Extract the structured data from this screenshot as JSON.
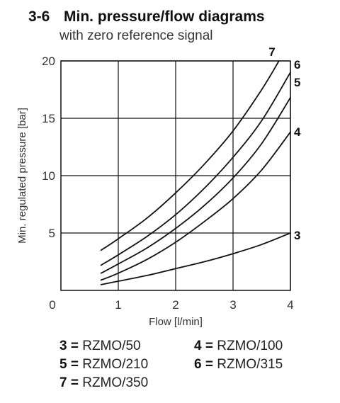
{
  "section": {
    "number": "3-6",
    "title": "Min. pressure/flow diagrams",
    "subtitle": "with zero reference signal"
  },
  "chart_data": {
    "type": "line",
    "xlabel": "Flow [l/min]",
    "ylabel": "Min. regulated pressure  [bar]",
    "xlim": [
      0,
      4
    ],
    "ylim": [
      0,
      20
    ],
    "xticks": [
      1,
      2,
      3,
      4
    ],
    "yticks": [
      5,
      10,
      15,
      20
    ],
    "origin_label": "0",
    "grid": true,
    "series": [
      {
        "name": "7",
        "x": [
          0.7,
          1.0,
          1.5,
          2.0,
          2.5,
          3.0,
          3.5,
          3.8
        ],
        "y": [
          3.5,
          4.5,
          6.3,
          8.5,
          11.0,
          13.9,
          17.5,
          20.0
        ]
      },
      {
        "name": "6",
        "x": [
          0.7,
          1.0,
          1.5,
          2.0,
          2.5,
          3.0,
          3.5,
          4.0
        ],
        "y": [
          2.2,
          3.1,
          4.7,
          6.6,
          8.9,
          11.6,
          14.8,
          19.0
        ]
      },
      {
        "name": "5",
        "x": [
          0.7,
          1.0,
          1.5,
          2.0,
          2.5,
          3.0,
          3.5,
          4.0
        ],
        "y": [
          1.5,
          2.3,
          3.7,
          5.4,
          7.4,
          9.8,
          12.8,
          16.8
        ]
      },
      {
        "name": "4",
        "x": [
          0.7,
          1.0,
          1.5,
          2.0,
          2.5,
          3.0,
          3.5,
          4.0
        ],
        "y": [
          0.9,
          1.5,
          2.7,
          4.2,
          6.0,
          8.0,
          10.5,
          13.8
        ]
      },
      {
        "name": "3",
        "x": [
          0.7,
          1.0,
          1.5,
          2.0,
          2.5,
          3.0,
          3.5,
          4.0
        ],
        "y": [
          0.5,
          0.8,
          1.3,
          1.9,
          2.5,
          3.2,
          4.0,
          5.0
        ]
      }
    ]
  },
  "legend": [
    {
      "key": "3",
      "value": "RZMO/50"
    },
    {
      "key": "4",
      "value": "RZMO/100"
    },
    {
      "key": "5",
      "value": "RZMO/210"
    },
    {
      "key": "6",
      "value": "RZMO/315"
    },
    {
      "key": "7",
      "value": "RZMO/350"
    }
  ],
  "legend_separator": " = "
}
